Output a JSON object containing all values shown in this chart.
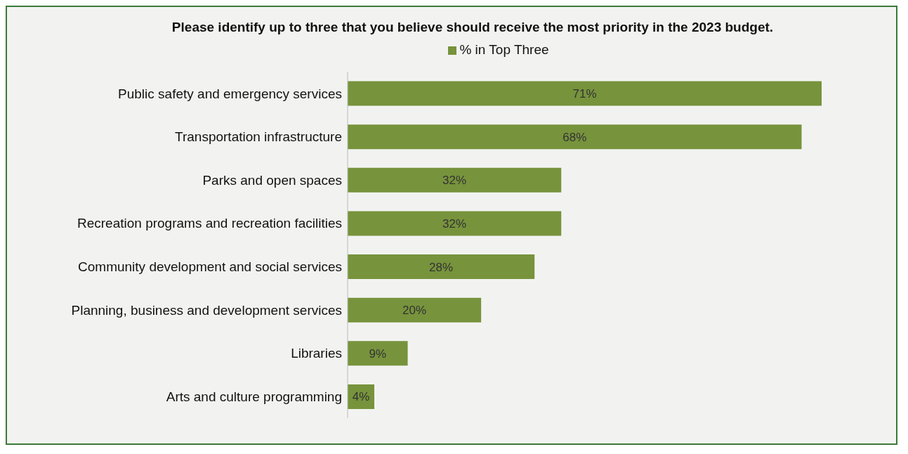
{
  "chart_data": {
    "type": "bar",
    "orientation": "horizontal",
    "title": "Please identify up to three that you believe should receive the most priority in the 2023 budget.",
    "categories": [
      "Public safety and emergency services",
      "Transportation infrastructure",
      "Parks and open spaces",
      "Recreation programs and recreation facilities",
      "Community development and social services",
      "Planning, business and development services",
      "Libraries",
      "Arts and culture programming"
    ],
    "series": [
      {
        "name": "% in Top Three",
        "color": "#77933c",
        "values": [
          71,
          68,
          32,
          32,
          28,
          20,
          9,
          4
        ]
      }
    ],
    "value_labels": [
      "71%",
      "68%",
      "32%",
      "32%",
      "28%",
      "20%",
      "9%",
      "4%"
    ],
    "data_labels": true,
    "legend": "top"
  }
}
